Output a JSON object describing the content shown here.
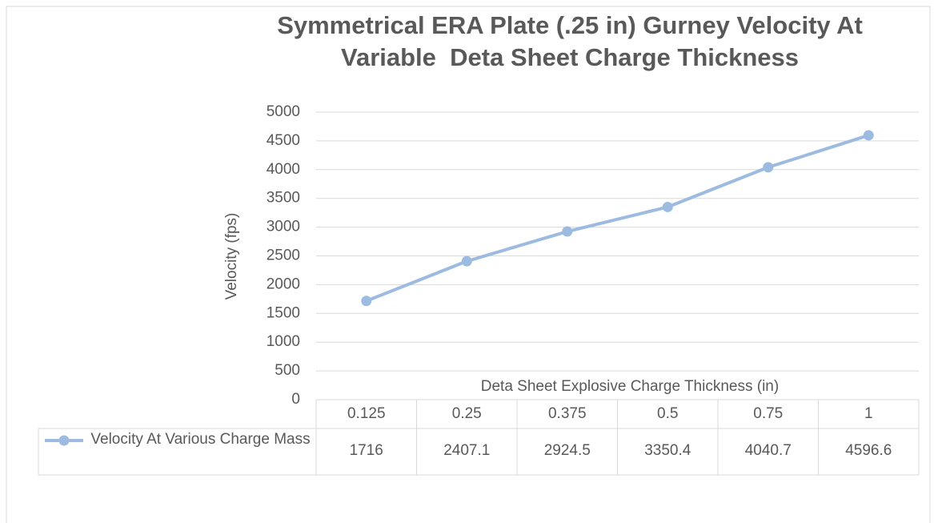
{
  "chart_data": {
    "type": "line",
    "title": "Symmetrical ERA Plate (.25 in) Gurney Velocity At\nVariable  Deta Sheet Charge Thickness",
    "x_label": "Deta Sheet Explosive Charge Thickness (in)",
    "y_label": "Velocity (fps)",
    "categories": [
      "0.125",
      "0.25",
      "0.375",
      "0.5",
      "0.75",
      "1"
    ],
    "series": [
      {
        "name": "Velocity At Various Charge Mass",
        "color": "#9dbbe1",
        "values": [
          1716,
          2407.1,
          2924.5,
          3350.4,
          4040.7,
          4596.6
        ]
      }
    ],
    "ylim": [
      0,
      5000
    ],
    "yticks": [
      0,
      500,
      1000,
      1500,
      2000,
      2500,
      3000,
      3500,
      4000,
      4500,
      5000
    ],
    "grid": true,
    "data_table": true
  }
}
